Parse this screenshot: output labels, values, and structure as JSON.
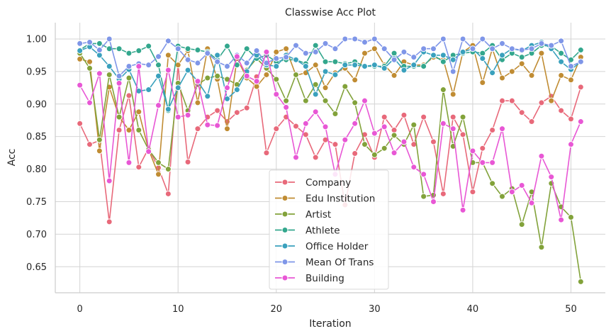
{
  "chart_data": {
    "type": "line",
    "title": "Classwise Acc Plot",
    "xlabel": "Iteration",
    "ylabel": "Acc",
    "xlim": [
      -2.5,
      53.5
    ],
    "ylim": [
      0.61,
      1.025
    ],
    "xticks": [
      0,
      10,
      20,
      30,
      40,
      50
    ],
    "yticks": [
      0.65,
      0.7,
      0.75,
      0.8,
      0.85,
      0.9,
      0.95,
      1.0
    ],
    "grid": true,
    "legend_position": "lower-center",
    "x": [
      0,
      1,
      2,
      3,
      4,
      5,
      6,
      7,
      8,
      9,
      10,
      11,
      12,
      13,
      14,
      15,
      16,
      17,
      18,
      19,
      20,
      21,
      22,
      23,
      24,
      25,
      26,
      27,
      28,
      29,
      30,
      31,
      32,
      33,
      34,
      35,
      36,
      37,
      38,
      39,
      40,
      41,
      42,
      43,
      44,
      45,
      46,
      47,
      48,
      49,
      50,
      51
    ],
    "series": [
      {
        "name": "Company",
        "color": "#e8697a",
        "values": [
          0.87,
          0.838,
          0.844,
          0.719,
          0.86,
          0.913,
          0.803,
          0.832,
          0.802,
          0.762,
          0.96,
          0.811,
          0.862,
          0.88,
          0.89,
          0.873,
          0.887,
          0.894,
          0.942,
          0.825,
          0.862,
          0.88,
          0.866,
          0.853,
          0.818,
          0.845,
          0.838,
          0.745,
          0.824,
          0.853,
          0.818,
          0.88,
          0.86,
          0.883,
          0.838,
          0.88,
          0.842,
          0.762,
          0.88,
          0.853,
          0.765,
          0.832,
          0.86,
          0.905,
          0.905,
          0.887,
          0.873,
          0.902,
          0.912,
          0.89,
          0.877,
          0.926
        ]
      },
      {
        "name": "Edu Institution",
        "color": "#c08c33",
        "values": [
          0.969,
          0.965,
          0.828,
          0.926,
          0.88,
          0.86,
          0.888,
          0.83,
          0.792,
          0.975,
          0.96,
          0.982,
          0.902,
          0.985,
          0.938,
          0.862,
          0.97,
          0.94,
          0.927,
          0.945,
          0.98,
          0.985,
          0.944,
          0.948,
          0.96,
          0.925,
          0.948,
          0.955,
          0.937,
          0.978,
          0.985,
          0.96,
          0.944,
          0.965,
          0.96,
          0.96,
          0.972,
          0.968,
          0.915,
          0.98,
          0.99,
          0.933,
          0.985,
          0.94,
          0.95,
          0.962,
          0.944,
          0.978,
          0.905,
          0.944,
          0.937,
          0.972
        ]
      },
      {
        "name": "Artist",
        "color": "#82a23a",
        "values": [
          0.978,
          0.955,
          0.845,
          0.945,
          0.88,
          0.94,
          0.86,
          0.83,
          0.81,
          0.8,
          0.932,
          0.89,
          0.93,
          0.94,
          0.943,
          0.938,
          0.93,
          0.952,
          0.97,
          0.955,
          0.938,
          0.905,
          0.945,
          0.905,
          0.93,
          0.905,
          0.885,
          0.927,
          0.902,
          0.838,
          0.822,
          0.832,
          0.852,
          0.838,
          0.868,
          0.758,
          0.76,
          0.922,
          0.835,
          0.88,
          0.81,
          0.81,
          0.778,
          0.758,
          0.77,
          0.715,
          0.765,
          0.68,
          0.778,
          0.742,
          0.726,
          0.627
        ]
      },
      {
        "name": "Athlete",
        "color": "#33a78d",
        "values": [
          0.983,
          0.993,
          0.993,
          0.985,
          0.985,
          0.978,
          0.982,
          0.989,
          0.96,
          0.89,
          0.989,
          0.985,
          0.983,
          0.98,
          0.968,
          0.989,
          0.96,
          0.985,
          0.97,
          0.975,
          0.965,
          0.968,
          0.968,
          0.962,
          0.99,
          0.965,
          0.965,
          0.962,
          0.965,
          0.958,
          0.958,
          0.958,
          0.978,
          0.958,
          0.958,
          0.958,
          0.975,
          0.965,
          0.975,
          0.978,
          0.98,
          0.978,
          0.99,
          0.968,
          0.978,
          0.972,
          0.978,
          0.99,
          0.989,
          0.978,
          0.968,
          0.983
        ]
      },
      {
        "name": "Office Holder",
        "color": "#3aa1bd",
        "values": [
          0.982,
          0.988,
          0.975,
          0.958,
          0.938,
          0.953,
          0.92,
          0.922,
          0.943,
          0.892,
          0.925,
          0.952,
          0.935,
          0.912,
          0.975,
          0.908,
          0.922,
          0.95,
          0.975,
          0.96,
          0.958,
          0.975,
          0.968,
          0.958,
          0.915,
          0.95,
          0.945,
          0.96,
          0.96,
          0.958,
          0.96,
          0.955,
          0.97,
          0.952,
          0.96,
          0.98,
          0.975,
          0.975,
          0.968,
          0.98,
          0.985,
          0.97,
          0.948,
          0.975,
          0.985,
          0.982,
          0.99,
          0.995,
          0.985,
          0.965,
          0.953,
          0.965
        ]
      },
      {
        "name": "Mean Of Trans",
        "color": "#7f96e8",
        "values": [
          0.993,
          0.995,
          0.983,
          1.0,
          0.943,
          0.958,
          0.962,
          0.96,
          0.973,
          0.997,
          0.985,
          0.968,
          0.963,
          0.978,
          0.965,
          0.958,
          0.975,
          0.963,
          0.982,
          0.963,
          0.97,
          0.972,
          0.99,
          0.978,
          0.98,
          0.993,
          0.985,
          1.0,
          1.0,
          0.995,
          1.0,
          0.985,
          0.968,
          0.98,
          0.972,
          0.985,
          0.985,
          1.0,
          0.95,
          1.0,
          0.985,
          1.0,
          0.985,
          0.993,
          0.985,
          0.983,
          0.985,
          0.993,
          0.99,
          0.997,
          0.958,
          0.965
        ]
      },
      {
        "name": "Building",
        "color": "#e857d5",
        "values": [
          0.929,
          0.902,
          0.947,
          0.782,
          0.932,
          0.81,
          0.958,
          0.827,
          0.898,
          0.952,
          0.88,
          0.883,
          0.935,
          0.868,
          0.867,
          0.925,
          0.973,
          0.943,
          0.935,
          0.98,
          0.915,
          0.895,
          0.818,
          0.87,
          0.888,
          0.865,
          0.792,
          0.845,
          0.87,
          0.905,
          0.855,
          0.865,
          0.825,
          0.842,
          0.803,
          0.792,
          0.75,
          0.87,
          0.862,
          0.737,
          0.828,
          0.81,
          0.81,
          0.862,
          0.765,
          0.775,
          0.748,
          0.82,
          0.788,
          0.722,
          0.838,
          0.873
        ]
      }
    ]
  }
}
